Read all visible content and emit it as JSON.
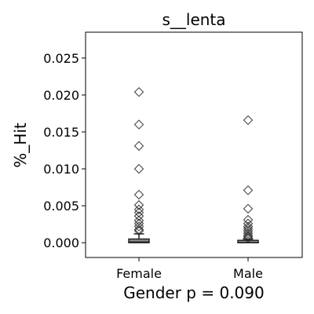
{
  "chart_data": {
    "type": "box",
    "title": "s__lenta",
    "xlabel": "Gender p = 0.090",
    "ylabel": "%_Hit",
    "categories": [
      "Female",
      "Male"
    ],
    "ylim": [
      -0.002,
      0.0285
    ],
    "yticks": [
      0.0,
      0.005,
      0.01,
      0.015,
      0.02,
      0.025
    ],
    "ytick_labels": [
      "0.000",
      "0.005",
      "0.010",
      "0.015",
      "0.020",
      "0.025"
    ],
    "grid": false,
    "box_color": "#8c8c8c",
    "series": [
      {
        "category": "Female",
        "box": {
          "whisker_low": 0.0,
          "q1": 0.0,
          "median": 0.0001,
          "q3": 0.0005,
          "whisker_high": 0.0012
        },
        "outliers": [
          0.0204,
          0.016,
          0.0131,
          0.01,
          0.0065,
          0.0051,
          0.0045,
          0.0041,
          0.0036,
          0.003,
          0.0026,
          0.0022,
          0.0018,
          0.0016
        ]
      },
      {
        "category": "Male",
        "box": {
          "whisker_low": 0.0,
          "q1": 0.0,
          "median": 0.0,
          "q3": 0.0002,
          "whisker_high": 0.0005
        },
        "outliers": [
          0.0166,
          0.0071,
          0.0046,
          0.0031,
          0.0026,
          0.0022,
          0.0019,
          0.0016,
          0.0013,
          0.001,
          0.0008,
          0.0006
        ]
      }
    ]
  }
}
